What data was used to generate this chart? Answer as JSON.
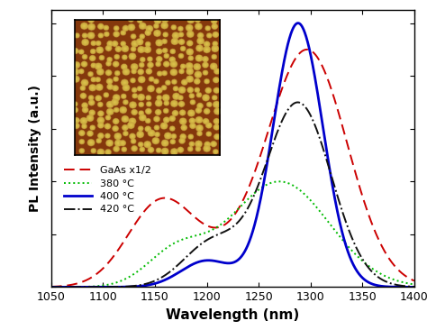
{
  "xlabel": "Wavelength (nm)",
  "ylabel": "PL Intensity (a.u.)",
  "xlim": [
    1050,
    1400
  ],
  "ylim": [
    0,
    1.05
  ],
  "xticks": [
    1050,
    1100,
    1150,
    1200,
    1250,
    1300,
    1350,
    1400
  ],
  "legend": [
    {
      "label": "GaAs x1/2",
      "color": "#cc0000",
      "linestyle": "dashed"
    },
    {
      "label": "380 °C",
      "color": "#00bb00",
      "linestyle": "dotted"
    },
    {
      "label": "400 °C",
      "color": "#0000cc",
      "linestyle": "solid"
    },
    {
      "label": "420 °C",
      "color": "#111111",
      "linestyle": "dashdot"
    }
  ],
  "background": "#ffffff",
  "bg_dark": [
    0.52,
    0.22,
    0.05
  ],
  "dot_color": [
    0.87,
    0.78,
    0.3
  ]
}
